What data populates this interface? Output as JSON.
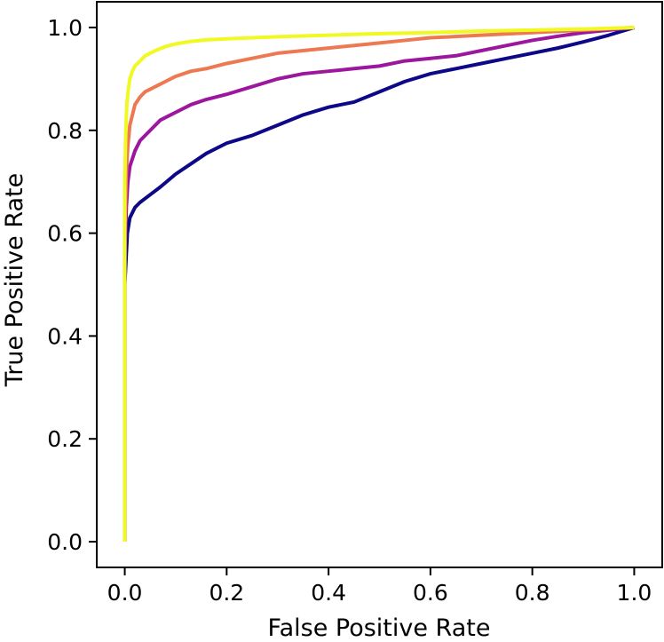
{
  "chart_data": {
    "type": "line",
    "title": "",
    "xlabel": "False Positive Rate",
    "ylabel": "True Positive Rate",
    "xlim": [
      -0.055,
      1.055
    ],
    "ylim": [
      -0.05,
      1.05
    ],
    "xticks": [
      0.0,
      0.2,
      0.4,
      0.6,
      0.8,
      1.0
    ],
    "yticks": [
      0.0,
      0.2,
      0.4,
      0.6,
      0.8,
      1.0
    ],
    "xtick_labels": [
      "0.0",
      "0.2",
      "0.4",
      "0.6",
      "0.8",
      "1.0"
    ],
    "ytick_labels": [
      "0.0",
      "0.2",
      "0.4",
      "0.6",
      "0.8",
      "1.0"
    ],
    "grid": false,
    "legend": "none",
    "series": [
      {
        "color": "#0d0887",
        "x": [
          0.0,
          0.0,
          0.003,
          0.005,
          0.01,
          0.02,
          0.03,
          0.05,
          0.07,
          0.1,
          0.13,
          0.16,
          0.2,
          0.25,
          0.3,
          0.35,
          0.4,
          0.45,
          0.5,
          0.55,
          0.6,
          0.65,
          0.7,
          0.75,
          0.8,
          0.85,
          0.9,
          0.95,
          1.0
        ],
        "y": [
          0.0,
          0.5,
          0.56,
          0.6,
          0.63,
          0.65,
          0.66,
          0.675,
          0.69,
          0.715,
          0.735,
          0.755,
          0.775,
          0.79,
          0.81,
          0.83,
          0.845,
          0.855,
          0.875,
          0.895,
          0.91,
          0.92,
          0.93,
          0.94,
          0.95,
          0.96,
          0.972,
          0.985,
          1.0
        ]
      },
      {
        "color": "#9c179e",
        "x": [
          0.0,
          0.0,
          0.003,
          0.006,
          0.01,
          0.02,
          0.03,
          0.05,
          0.07,
          0.1,
          0.13,
          0.16,
          0.2,
          0.25,
          0.3,
          0.35,
          0.4,
          0.45,
          0.5,
          0.55,
          0.6,
          0.65,
          0.7,
          0.75,
          0.8,
          0.85,
          0.9,
          0.95,
          1.0
        ],
        "y": [
          0.0,
          0.55,
          0.65,
          0.7,
          0.73,
          0.76,
          0.78,
          0.8,
          0.82,
          0.835,
          0.85,
          0.86,
          0.87,
          0.885,
          0.9,
          0.91,
          0.915,
          0.92,
          0.925,
          0.935,
          0.94,
          0.945,
          0.955,
          0.965,
          0.975,
          0.983,
          0.99,
          0.995,
          1.0
        ]
      },
      {
        "color": "#ed7953",
        "x": [
          0.0,
          0.0,
          0.003,
          0.006,
          0.01,
          0.02,
          0.03,
          0.04,
          0.06,
          0.08,
          0.1,
          0.13,
          0.16,
          0.2,
          0.25,
          0.3,
          0.35,
          0.4,
          0.45,
          0.5,
          0.55,
          0.6,
          0.7,
          0.8,
          0.9,
          1.0
        ],
        "y": [
          0.0,
          0.6,
          0.72,
          0.77,
          0.81,
          0.85,
          0.865,
          0.875,
          0.885,
          0.895,
          0.905,
          0.915,
          0.92,
          0.93,
          0.94,
          0.95,
          0.955,
          0.96,
          0.965,
          0.97,
          0.975,
          0.98,
          0.985,
          0.99,
          0.995,
          1.0
        ]
      },
      {
        "color": "#f0f921",
        "x": [
          0.0,
          0.0,
          0.002,
          0.004,
          0.007,
          0.01,
          0.015,
          0.02,
          0.03,
          0.04,
          0.06,
          0.08,
          0.1,
          0.13,
          0.16,
          0.2,
          0.3,
          0.4,
          0.5,
          0.6,
          0.7,
          0.8,
          0.9,
          1.0
        ],
        "y": [
          0.0,
          0.7,
          0.8,
          0.85,
          0.88,
          0.9,
          0.915,
          0.925,
          0.935,
          0.945,
          0.955,
          0.963,
          0.968,
          0.973,
          0.976,
          0.978,
          0.982,
          0.985,
          0.988,
          0.99,
          0.993,
          0.995,
          0.997,
          1.0
        ]
      }
    ]
  }
}
